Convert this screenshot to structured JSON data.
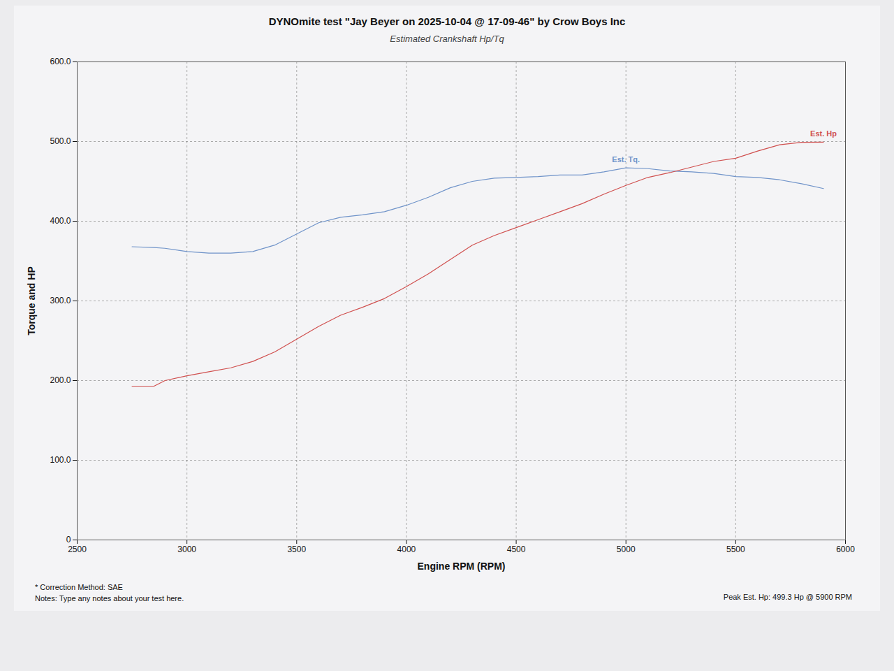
{
  "chart_data": {
    "type": "line",
    "title": "DYNOmite test \"Jay Beyer on 2025-10-04 @ 17-09-46\" by Crow Boys Inc",
    "subtitle": "Estimated Crankshaft Hp/Tq",
    "x_label": "Engine RPM (RPM)",
    "y_label": "Torque and HP",
    "x": [
      2750,
      2850,
      2900,
      3000,
      3100,
      3200,
      3300,
      3400,
      3500,
      3600,
      3700,
      3800,
      3900,
      4000,
      4100,
      4200,
      4300,
      4400,
      4500,
      4600,
      4700,
      4800,
      4900,
      5000,
      5100,
      5200,
      5300,
      5400,
      5500,
      5600,
      5700,
      5800,
      5900
    ],
    "series": [
      {
        "name": "Est. Tq.",
        "color": "#6f93c9",
        "values": [
          368,
          367,
          366,
          362,
          360,
          360,
          362,
          370,
          384,
          398,
          405,
          408,
          412,
          420,
          430,
          442,
          450,
          454,
          455,
          456,
          458,
          458,
          462,
          467,
          466,
          463,
          462,
          460,
          456,
          455,
          452,
          447,
          441
        ]
      },
      {
        "name": "Est. Hp",
        "color": "#d0504f",
        "values": [
          193,
          193,
          200,
          206,
          211,
          216,
          224,
          236,
          252,
          268,
          282,
          292,
          303,
          318,
          334,
          352,
          370,
          382,
          392,
          402,
          412,
          422,
          434,
          445,
          455,
          461,
          468,
          475,
          479,
          488,
          496,
          499,
          499.3
        ]
      }
    ],
    "xlim": [
      2500,
      6000
    ],
    "ylim": [
      0,
      600
    ],
    "xticks": [
      2500,
      3000,
      3500,
      4000,
      4500,
      5000,
      5500,
      6000
    ],
    "yticks": [
      0,
      {
        "value": 100,
        "label": "100.0"
      },
      {
        "value": 200,
        "label": "200.0"
      },
      {
        "value": 300,
        "label": "300.0"
      },
      {
        "value": 400,
        "label": "400.0"
      },
      {
        "value": 500,
        "label": "500.0"
      },
      {
        "value": 600,
        "label": "600.0"
      }
    ],
    "grid": true,
    "annotations": [
      "* Correction Method: SAE",
      "Notes: Type any notes about your test here.",
      "Peak Est. Hp: 499.3 Hp @ 5900 RPM"
    ]
  }
}
